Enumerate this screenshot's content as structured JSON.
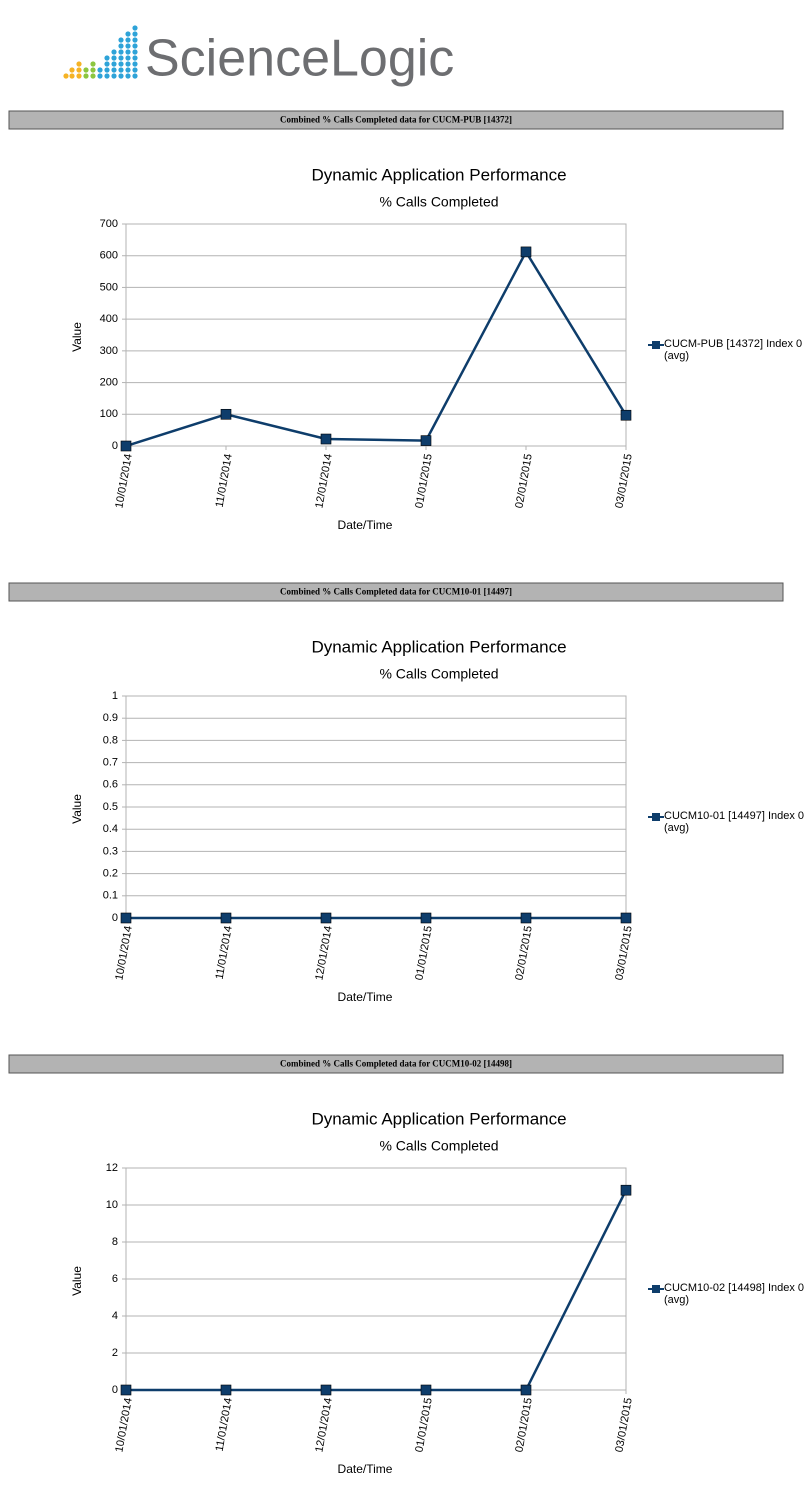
{
  "logo": "ScienceLogic",
  "chart_data": [
    {
      "type": "line",
      "caption": "Combined % Calls Completed data for CUCM-PUB [14372]",
      "title": "Dynamic Application Performance",
      "subtitle": "% Calls Completed",
      "x_label": "Date/Time",
      "y_label": "Value",
      "categories": [
        "10/01/2014",
        "11/01/2014",
        "12/01/2014",
        "01/01/2015",
        "02/01/2015",
        "03/01/2015"
      ],
      "series": [
        {
          "name": "CUCM-PUB [14372] Index 0 (avg)",
          "color": "#0e3d6b",
          "values": [
            0,
            100,
            22,
            17,
            612,
            97
          ]
        }
      ],
      "ylim": [
        0,
        700
      ],
      "yticks": [
        0,
        100,
        200,
        300,
        400,
        500,
        600,
        700
      ],
      "grid": true
    },
    {
      "type": "line",
      "caption": "Combined % Calls Completed data for CUCM10-01 [14497]",
      "title": "Dynamic Application Performance",
      "subtitle": "% Calls Completed",
      "x_label": "Date/Time",
      "y_label": "Value",
      "categories": [
        "10/01/2014",
        "11/01/2014",
        "12/01/2014",
        "01/01/2015",
        "02/01/2015",
        "03/01/2015"
      ],
      "series": [
        {
          "name": "CUCM10-01 [14497] Index 0 (avg)",
          "color": "#0e3d6b",
          "values": [
            0,
            0,
            0,
            0,
            0,
            0
          ]
        }
      ],
      "ylim": [
        0,
        1
      ],
      "yticks": [
        0,
        0.1,
        0.2,
        0.3,
        0.4,
        0.5,
        0.6,
        0.7,
        0.8,
        0.9,
        1
      ],
      "grid": true
    },
    {
      "type": "line",
      "caption": "Combined % Calls Completed data for CUCM10-02 [14498]",
      "title": "Dynamic Application Performance",
      "subtitle": "% Calls Completed",
      "x_label": "Date/Time",
      "y_label": "Value",
      "categories": [
        "10/01/2014",
        "11/01/2014",
        "12/01/2014",
        "01/01/2015",
        "02/01/2015",
        "03/01/2015"
      ],
      "series": [
        {
          "name": "CUCM10-02 [14498] Index 0 (avg)",
          "color": "#0e3d6b",
          "values": [
            0,
            0,
            0,
            0,
            0,
            10.8
          ]
        }
      ],
      "ylim": [
        0,
        12
      ],
      "yticks": [
        0,
        2,
        4,
        6,
        8,
        10,
        12
      ],
      "grid": true
    }
  ]
}
